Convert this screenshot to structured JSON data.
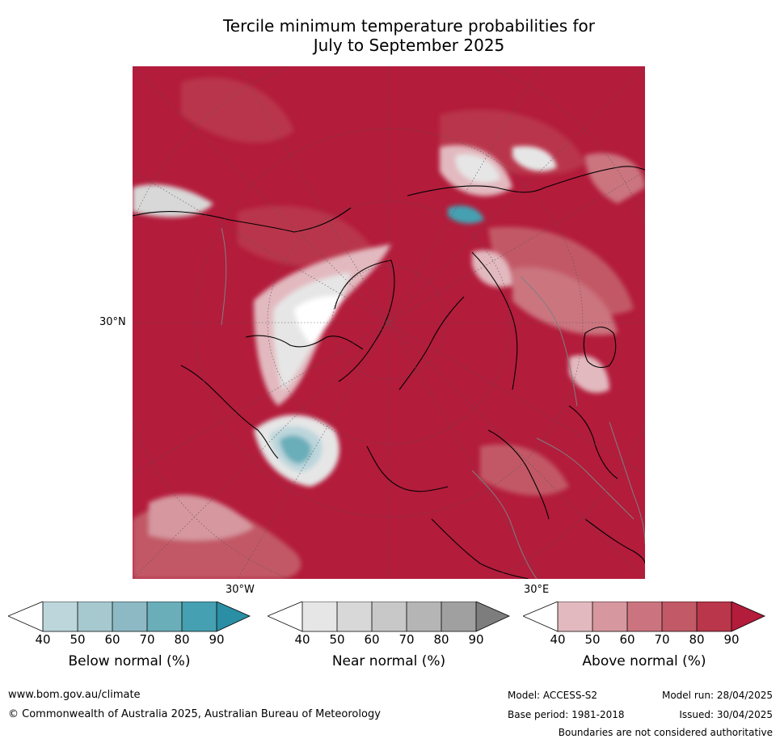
{
  "title": {
    "line1": "Tercile minimum temperature probabilities for",
    "line2": "July to September 2025"
  },
  "map": {
    "projection": "north-polar-stereographic",
    "lat_labels": [
      "30°N"
    ],
    "lon_labels": [
      "30°W",
      "30°E"
    ],
    "dominant_category": "above-normal"
  },
  "colorbars": [
    {
      "title": "Below normal (%)",
      "ticks": [
        "40",
        "50",
        "60",
        "70",
        "80",
        "90"
      ],
      "colors": [
        "#ffffff",
        "#bcd6dc",
        "#a6c8cf",
        "#8db9c4",
        "#6aaeb9",
        "#45a0b1",
        "#2a8ea4"
      ]
    },
    {
      "title": "Near normal (%)",
      "ticks": [
        "40",
        "50",
        "60",
        "70",
        "80",
        "90"
      ],
      "colors": [
        "#ffffff",
        "#e6e6e6",
        "#d8d8d8",
        "#c8c8c8",
        "#b5b5b5",
        "#a0a0a0",
        "#7d7d7d"
      ]
    },
    {
      "title": "Above normal (%)",
      "ticks": [
        "40",
        "50",
        "60",
        "70",
        "80",
        "90"
      ],
      "colors": [
        "#ffffff",
        "#e2b9bf",
        "#d6979f",
        "#cb747f",
        "#c25966",
        "#b9364b",
        "#b31c3b"
      ]
    }
  ],
  "footer": {
    "website": "www.bom.gov.au/climate",
    "copyright": "© Commonwealth of Australia 2025, Australian Bureau of Meteorology",
    "model": "Model: ACCESS-S2",
    "base_period": "Base period: 1981-2018",
    "model_run": "Model run: 28/04/2025",
    "issued": "Issued: 30/04/2025",
    "disclaimer": "Boundaries are not considered authoritative"
  }
}
